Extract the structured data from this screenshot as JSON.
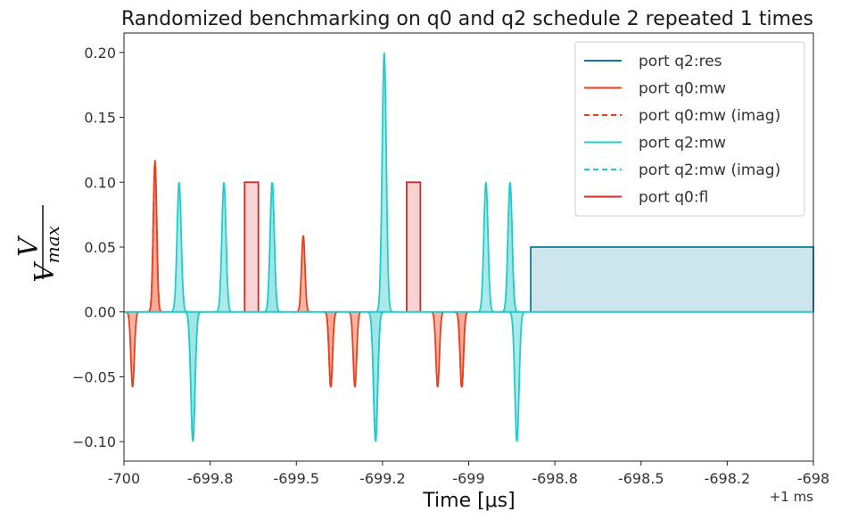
{
  "chart_data": {
    "type": "line",
    "title": "Randomized benchmarking on q0 and q2 schedule 2 repeated 1 times",
    "xlabel": "Time [μs]",
    "ylabel": {
      "numerator": "V",
      "denominator": "V",
      "denominator_sub": "max"
    },
    "x_offset_label": "+1 ms",
    "xlim": [
      -700,
      -698
    ],
    "ylim": [
      -0.115,
      0.215
    ],
    "x_ticks": [
      -700,
      -699.75,
      -699.5,
      -699.25,
      -699,
      -698.75,
      -698.5,
      -698.25,
      -698
    ],
    "x_tick_labels": [
      "-700",
      "-699.8",
      "-699.5",
      "-699.2",
      "-699",
      "-698.8",
      "-698.5",
      "-698.2",
      "-698"
    ],
    "y_ticks": [
      -0.1,
      -0.05,
      0.0,
      0.05,
      0.1,
      0.15,
      0.2
    ],
    "y_tick_labels": [
      "−0.10",
      "−0.05",
      "0.00",
      "0.05",
      "0.10",
      "0.15",
      "0.20"
    ],
    "legend_position": "top-right",
    "series": [
      {
        "name": "port q2:res",
        "color": "#0f7c94",
        "fill": "#cde5ec",
        "style": "solid",
        "segments": [
          {
            "kind": "rect",
            "start": -698.82,
            "end": -698.0,
            "amp": 0.05
          }
        ]
      },
      {
        "name": "port q0:mw",
        "color": "#e8401c",
        "fill": "#f4a898",
        "style": "solid",
        "segments": [
          {
            "kind": "gauss",
            "center": -699.975,
            "amp": -0.058,
            "sigma": 0.005
          },
          {
            "kind": "gauss",
            "center": -699.91,
            "amp": 0.115,
            "sigma": 0.005
          },
          {
            "kind": "gauss",
            "center": -699.48,
            "amp": 0.059,
            "sigma": 0.005
          },
          {
            "kind": "gauss",
            "center": -699.4,
            "amp": -0.058,
            "sigma": 0.005
          },
          {
            "kind": "gauss",
            "center": -699.33,
            "amp": -0.058,
            "sigma": 0.005
          },
          {
            "kind": "gauss",
            "center": -699.09,
            "amp": -0.058,
            "sigma": 0.005
          },
          {
            "kind": "gauss",
            "center": -699.02,
            "amp": -0.058,
            "sigma": 0.005
          }
        ]
      },
      {
        "name": "port q0:mw (imag)",
        "color": "#e8401c",
        "fill": "#f4a898",
        "style": "dashed",
        "segments": [
          {
            "kind": "gauss",
            "center": -699.91,
            "amp": 0.117,
            "sigma": 0.005
          },
          {
            "kind": "gauss",
            "center": -699.4,
            "amp": -0.059,
            "sigma": 0.005
          },
          {
            "kind": "gauss",
            "center": -699.02,
            "amp": -0.059,
            "sigma": 0.005
          }
        ]
      },
      {
        "name": "port q2:mw",
        "color": "#22cccc",
        "fill": "#9fe5e5",
        "style": "solid",
        "segments": [
          {
            "kind": "gauss",
            "center": -699.84,
            "amp": 0.1,
            "sigma": 0.006
          },
          {
            "kind": "gauss",
            "center": -699.8,
            "amp": -0.1,
            "sigma": 0.006
          },
          {
            "kind": "gauss",
            "center": -699.71,
            "amp": 0.1,
            "sigma": 0.006
          },
          {
            "kind": "gauss",
            "center": -699.57,
            "amp": 0.1,
            "sigma": 0.006
          },
          {
            "kind": "gauss",
            "center": -699.27,
            "amp": -0.1,
            "sigma": 0.006
          },
          {
            "kind": "gauss",
            "center": -699.245,
            "amp": 0.2,
            "sigma": 0.006
          },
          {
            "kind": "gauss",
            "center": -698.95,
            "amp": 0.1,
            "sigma": 0.006
          },
          {
            "kind": "gauss",
            "center": -698.88,
            "amp": 0.1,
            "sigma": 0.006
          },
          {
            "kind": "gauss",
            "center": -698.86,
            "amp": -0.1,
            "sigma": 0.006
          }
        ]
      },
      {
        "name": "port q2:mw (imag)",
        "color": "#22cccc",
        "fill": "#9fe5e5",
        "style": "dashed",
        "segments": [
          {
            "kind": "gauss",
            "center": -699.8,
            "amp": -0.1,
            "sigma": 0.006
          },
          {
            "kind": "gauss",
            "center": -699.57,
            "amp": 0.1,
            "sigma": 0.006
          },
          {
            "kind": "gauss",
            "center": -699.27,
            "amp": -0.1,
            "sigma": 0.006
          },
          {
            "kind": "gauss",
            "center": -698.88,
            "amp": 0.1,
            "sigma": 0.006
          }
        ]
      },
      {
        "name": "port q0:fl",
        "color": "#d02a2a",
        "fill": "#f5cccc",
        "style": "solid",
        "segments": [
          {
            "kind": "rect",
            "start": -699.65,
            "end": -699.61,
            "amp": 0.1
          },
          {
            "kind": "rect",
            "start": -699.18,
            "end": -699.14,
            "amp": 0.1
          }
        ]
      }
    ]
  }
}
